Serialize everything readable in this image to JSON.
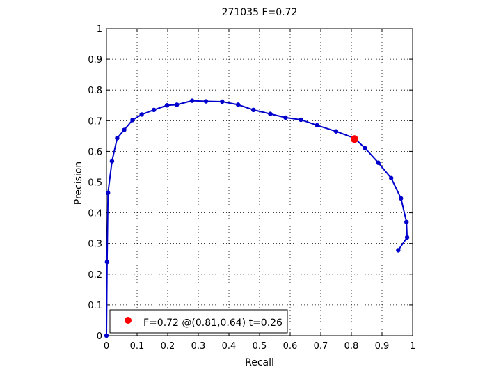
{
  "chart_data": {
    "type": "line",
    "title": "271035 F=0.72",
    "xlabel": "Recall",
    "ylabel": "Precision",
    "xlim": [
      0,
      1
    ],
    "ylim": [
      0,
      1
    ],
    "xticks": [
      "0",
      "0.1",
      "0.2",
      "0.3",
      "0.4",
      "0.5",
      "0.6",
      "0.7",
      "0.8",
      "0.9",
      "1"
    ],
    "yticks": [
      "0",
      "0.1",
      "0.2",
      "0.3",
      "0.4",
      "0.5",
      "0.6",
      "0.7",
      "0.8",
      "0.9",
      "1"
    ],
    "grid": true,
    "legend_position": "bottom-left",
    "series": [
      {
        "color": "#0000cc",
        "marker": "dot",
        "points": [
          {
            "x": 0.0,
            "y": 0.0
          },
          {
            "x": 0.002,
            "y": 0.24
          },
          {
            "x": 0.005,
            "y": 0.465
          },
          {
            "x": 0.018,
            "y": 0.568
          },
          {
            "x": 0.035,
            "y": 0.643
          },
          {
            "x": 0.058,
            "y": 0.67
          },
          {
            "x": 0.085,
            "y": 0.702
          },
          {
            "x": 0.115,
            "y": 0.72
          },
          {
            "x": 0.155,
            "y": 0.735
          },
          {
            "x": 0.198,
            "y": 0.75
          },
          {
            "x": 0.23,
            "y": 0.752
          },
          {
            "x": 0.28,
            "y": 0.765
          },
          {
            "x": 0.325,
            "y": 0.763
          },
          {
            "x": 0.378,
            "y": 0.762
          },
          {
            "x": 0.43,
            "y": 0.752
          },
          {
            "x": 0.48,
            "y": 0.735
          },
          {
            "x": 0.535,
            "y": 0.722
          },
          {
            "x": 0.585,
            "y": 0.71
          },
          {
            "x": 0.635,
            "y": 0.703
          },
          {
            "x": 0.688,
            "y": 0.685
          },
          {
            "x": 0.75,
            "y": 0.665
          },
          {
            "x": 0.81,
            "y": 0.643
          },
          {
            "x": 0.845,
            "y": 0.61
          },
          {
            "x": 0.888,
            "y": 0.563
          },
          {
            "x": 0.93,
            "y": 0.513
          },
          {
            "x": 0.962,
            "y": 0.447
          },
          {
            "x": 0.98,
            "y": 0.37
          },
          {
            "x": 0.982,
            "y": 0.32
          },
          {
            "x": 0.953,
            "y": 0.278
          }
        ]
      }
    ],
    "highlight": {
      "x": 0.81,
      "y": 0.64,
      "color": "#ff0000",
      "label": "F=0.72 @(0.81,0.64) t=0.26"
    }
  }
}
